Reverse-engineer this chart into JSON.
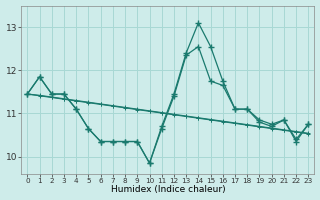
{
  "x": [
    0,
    1,
    2,
    3,
    4,
    5,
    6,
    7,
    8,
    9,
    10,
    11,
    12,
    13,
    14,
    15,
    16,
    17,
    18,
    19,
    20,
    21,
    22,
    23
  ],
  "series_volatile_main": [
    11.45,
    11.85,
    11.45,
    11.45,
    11.1,
    10.65,
    10.35,
    10.35,
    10.35,
    10.35,
    9.85,
    10.7,
    11.45,
    12.4,
    13.1,
    12.55,
    11.75,
    11.1,
    11.1,
    10.85,
    10.75,
    10.85,
    10.35,
    10.75
  ],
  "series_volatile_2": [
    11.45,
    11.85,
    11.45,
    11.45,
    11.1,
    10.65,
    10.35,
    10.35,
    10.35,
    10.35,
    9.85,
    10.65,
    11.4,
    12.35,
    12.55,
    11.75,
    11.65,
    11.1,
    11.1,
    10.8,
    10.7,
    10.85,
    10.4,
    10.75
  ],
  "series_flat_1": [
    11.45,
    11.42,
    11.38,
    11.34,
    11.3,
    11.26,
    11.22,
    11.18,
    11.14,
    11.1,
    11.06,
    11.02,
    10.98,
    10.94,
    10.9,
    10.86,
    10.82,
    10.78,
    10.74,
    10.7,
    10.66,
    10.62,
    10.58,
    10.54
  ],
  "series_flat_2": [
    11.45,
    11.41,
    11.37,
    11.33,
    11.29,
    11.25,
    11.21,
    11.17,
    11.13,
    11.09,
    11.05,
    11.01,
    10.97,
    10.93,
    10.89,
    10.85,
    10.81,
    10.77,
    10.73,
    10.69,
    10.65,
    10.61,
    10.57,
    10.53
  ],
  "line_color": "#1a7a6e",
  "bg_color": "#ceecea",
  "grid_color": "#a8d8d4",
  "xlabel": "Humidex (Indice chaleur)",
  "yticks": [
    10,
    11,
    12,
    13
  ],
  "xticks": [
    0,
    1,
    2,
    3,
    4,
    5,
    6,
    7,
    8,
    9,
    10,
    11,
    12,
    13,
    14,
    15,
    16,
    17,
    18,
    19,
    20,
    21,
    22,
    23
  ],
  "ylim": [
    9.6,
    13.5
  ],
  "xlim": [
    -0.5,
    23.5
  ]
}
